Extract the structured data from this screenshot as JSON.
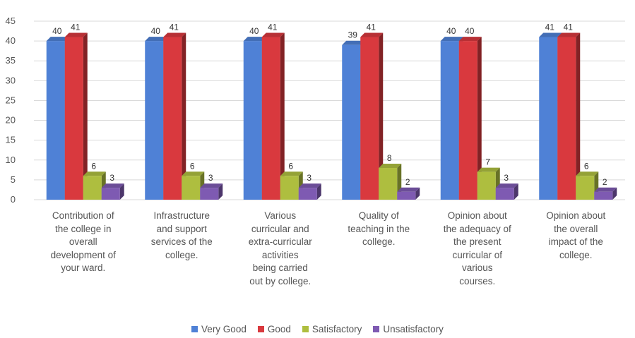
{
  "chart_data": {
    "type": "bar",
    "categories": [
      "Contribution of the college in overall development of your ward.",
      "Infrastructure and support services of the college.",
      "Various curricular and extra-curricular activities being carried out by college.",
      "Quality of teaching in the college.",
      "Opinion about the adequacy of the present curricular of various courses.",
      "Opinion about the overall impact of the college."
    ],
    "series": [
      {
        "name": "Very Good",
        "color": "#4f81d6",
        "values": [
          40,
          40,
          40,
          39,
          40,
          41
        ]
      },
      {
        "name": "Good",
        "color": "#d9393e",
        "values": [
          41,
          41,
          41,
          41,
          40,
          41
        ]
      },
      {
        "name": "Satisfactory",
        "color": "#aebe3f",
        "values": [
          6,
          6,
          6,
          8,
          7,
          6
        ]
      },
      {
        "name": "Unsatisfactory",
        "color": "#7e5ab2",
        "values": [
          3,
          3,
          3,
          2,
          3,
          2
        ]
      }
    ],
    "ylim": [
      0,
      45
    ],
    "yticks": [
      0,
      5,
      10,
      15,
      20,
      25,
      30,
      35,
      40,
      45
    ],
    "legend_position": "bottom",
    "grid": true
  }
}
